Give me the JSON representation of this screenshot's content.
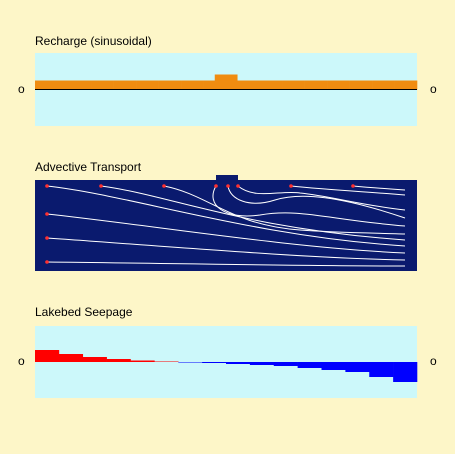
{
  "panels": [
    {
      "title": "Recharge (sinusoidal)",
      "left_label": "o",
      "right_label": "o",
      "ylim": [
        -36.5,
        36.5
      ],
      "color": "#f08c10",
      "values": [
        9,
        9,
        9,
        9,
        9,
        9,
        9,
        9,
        9,
        9,
        9,
        9,
        9,
        9,
        9,
        9,
        15,
        15,
        9,
        9,
        9,
        9,
        9,
        9,
        9,
        9,
        9,
        9,
        9,
        9,
        9,
        9,
        9,
        9
      ]
    },
    {
      "title": "Advective Transport"
    },
    {
      "title": "Lakebed Seepage",
      "left_label": "o",
      "right_label": "o",
      "ylim": [
        -36,
        36
      ],
      "positive_color": "#ff0000",
      "negative_color": "#0000ff",
      "values": [
        12,
        8,
        5,
        3,
        1.5,
        0.5,
        -0.5,
        -1,
        -2,
        -3,
        -4,
        -6,
        -8,
        -10,
        -15,
        -20
      ]
    }
  ]
}
